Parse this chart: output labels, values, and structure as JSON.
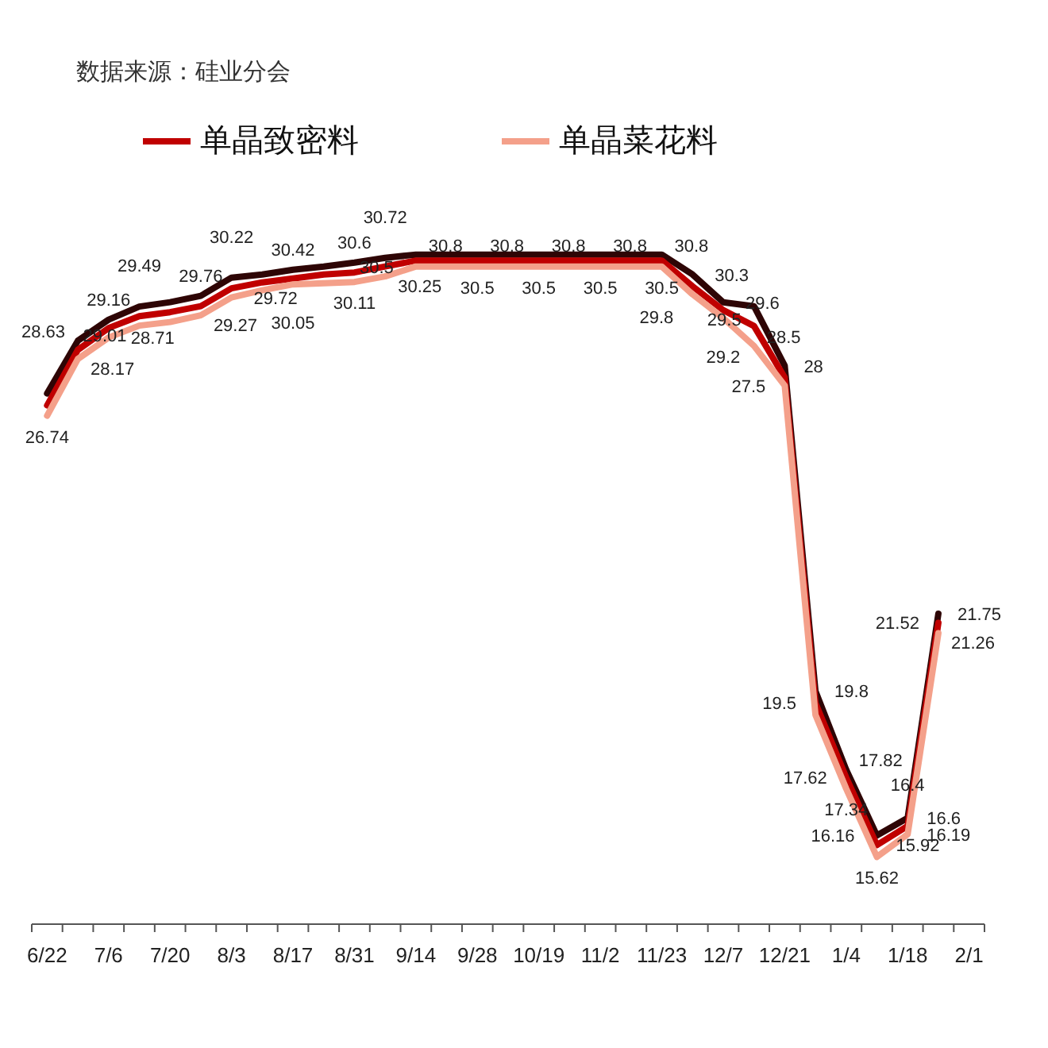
{
  "chart_data": {
    "type": "line",
    "annotations": [
      "数据来源：硅业分会"
    ],
    "categories": [
      "6/22",
      null,
      "7/6",
      null,
      "7/20",
      null,
      "8/3",
      null,
      "8/17",
      null,
      "8/31",
      null,
      "9/14",
      null,
      "9/28",
      null,
      "10/19",
      null,
      "11/2",
      null,
      "11/23",
      null,
      "12/7",
      null,
      "12/21",
      null,
      "1/4",
      null,
      "1/18",
      null,
      "2/1"
    ],
    "series": [
      {
        "color": "#2e0505",
        "values": [
          27.3,
          28.63,
          29.16,
          29.49,
          29.6,
          29.76,
          30.22,
          30.3,
          30.42,
          30.5,
          30.6,
          30.72,
          30.8,
          30.8,
          30.8,
          30.8,
          30.8,
          30.8,
          30.8,
          30.8,
          30.8,
          30.3,
          29.6,
          29.5,
          28,
          19.8,
          17.82,
          16.16,
          16.6,
          21.75,
          null
        ],
        "value_labels": [
          null,
          "28.63",
          "29.16",
          "29.49",
          null,
          "29.76",
          "30.22",
          null,
          "30.42",
          null,
          "30.6",
          "30.72",
          "30.8",
          null,
          "30.8",
          null,
          "30.8",
          null,
          "30.8",
          null,
          "30.8",
          "30.3",
          "29.6",
          "29.5",
          "28",
          "19.8",
          "17.82",
          "16.16",
          "16.6",
          "21.75",
          null
        ]
      },
      {
        "name": "单晶致密料",
        "color": "#c00000",
        "values": [
          27.0,
          28.4,
          28.95,
          29.25,
          29.35,
          29.5,
          29.95,
          30.1,
          30.2,
          30.3,
          30.35,
          30.5,
          30.65,
          30.65,
          30.65,
          30.65,
          30.65,
          30.65,
          30.65,
          30.65,
          30.65,
          30.0,
          29.4,
          29.0,
          27.7,
          19.5,
          17.62,
          15.92,
          16.4,
          21.52,
          null
        ],
        "value_labels": [
          null,
          null,
          null,
          null,
          null,
          null,
          null,
          null,
          null,
          null,
          null,
          null,
          null,
          null,
          null,
          null,
          null,
          null,
          null,
          null,
          null,
          null,
          null,
          null,
          null,
          "19.5",
          "17.62",
          "15.92",
          "16.4",
          "21.52",
          null
        ]
      },
      {
        "name": "单晶菜花料",
        "color": "#f4a08a",
        "values": [
          26.74,
          28.17,
          28.71,
          29.01,
          29.1,
          29.27,
          29.72,
          29.9,
          30.05,
          30.08,
          30.11,
          30.25,
          30.5,
          30.5,
          30.5,
          30.5,
          30.5,
          30.5,
          30.5,
          30.5,
          30.5,
          29.8,
          29.2,
          28.5,
          27.5,
          19.2,
          17.34,
          15.62,
          16.19,
          21.26,
          null
        ],
        "value_labels": [
          "26.74",
          "28.17",
          "28.71",
          "29.01",
          null,
          "29.27",
          "29.72",
          null,
          "30.05",
          null,
          "30.11",
          "30.25",
          "30.5",
          null,
          "30.5",
          null,
          "30.5",
          null,
          "30.5",
          null,
          "30.5",
          "29.8",
          "29.2",
          "28.5",
          "27.5",
          null,
          "17.34",
          "15.62",
          "16.19",
          "21.26",
          null
        ]
      }
    ],
    "legend": "top",
    "line_style": "solid",
    "marker": "none"
  }
}
